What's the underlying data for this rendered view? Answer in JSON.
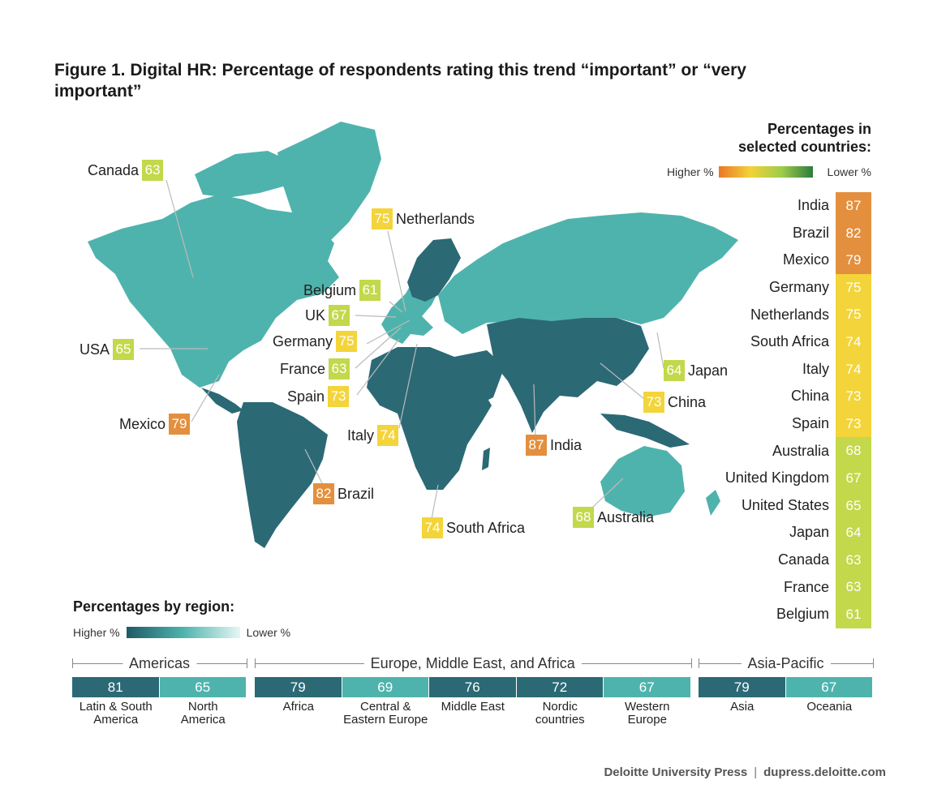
{
  "title": "Figure 1. Digital HR: Percentage of respondents rating this trend “important” or “very important”",
  "legend": {
    "heading_line1": "Percentages in",
    "heading_line2": "selected countries:",
    "higher": "Higher %",
    "lower": "Lower %",
    "region_heading": "Percentages by region:"
  },
  "colors": {
    "orange": "#e38f3e",
    "yellow": "#f3d43a",
    "lime": "#c3d84a",
    "region_dark": "#2b6975",
    "region_light": "#4fb3ad",
    "land_light": "#4fb3ad",
    "land_dark": "#2b6975"
  },
  "chart_data": [
    {
      "type": "table",
      "title": "Percentages in selected countries",
      "rows": [
        {
          "country": "India",
          "value": 87,
          "tier": "orange"
        },
        {
          "country": "Brazil",
          "value": 82,
          "tier": "orange"
        },
        {
          "country": "Mexico",
          "value": 79,
          "tier": "orange"
        },
        {
          "country": "Germany",
          "value": 75,
          "tier": "yellow"
        },
        {
          "country": "Netherlands",
          "value": 75,
          "tier": "yellow"
        },
        {
          "country": "South Africa",
          "value": 74,
          "tier": "yellow"
        },
        {
          "country": "Italy",
          "value": 74,
          "tier": "yellow"
        },
        {
          "country": "China",
          "value": 73,
          "tier": "yellow"
        },
        {
          "country": "Spain",
          "value": 73,
          "tier": "yellow"
        },
        {
          "country": "Australia",
          "value": 68,
          "tier": "lime"
        },
        {
          "country": "United Kingdom",
          "value": 67,
          "tier": "lime"
        },
        {
          "country": "United States",
          "value": 65,
          "tier": "lime"
        },
        {
          "country": "Japan",
          "value": 64,
          "tier": "lime"
        },
        {
          "country": "Canada",
          "value": 63,
          "tier": "lime"
        },
        {
          "country": "France",
          "value": 63,
          "tier": "lime"
        },
        {
          "country": "Belgium",
          "value": 61,
          "tier": "lime"
        }
      ]
    },
    {
      "type": "table",
      "title": "Percentages by region",
      "groups": [
        {
          "name": "Americas",
          "regions": [
            {
              "label_lines": [
                "Latin & South",
                "America"
              ],
              "value": 81,
              "shade": "dark"
            },
            {
              "label_lines": [
                "North",
                "America"
              ],
              "value": 65,
              "shade": "light"
            }
          ]
        },
        {
          "name": "Europe, Middle East, and Africa",
          "regions": [
            {
              "label_lines": [
                "Africa"
              ],
              "value": 79,
              "shade": "dark"
            },
            {
              "label_lines": [
                "Central &",
                "Eastern Europe"
              ],
              "value": 69,
              "shade": "light"
            },
            {
              "label_lines": [
                "Middle East"
              ],
              "value": 76,
              "shade": "dark"
            },
            {
              "label_lines": [
                "Nordic",
                "countries"
              ],
              "value": 72,
              "shade": "dark"
            },
            {
              "label_lines": [
                "Western",
                "Europe"
              ],
              "value": 67,
              "shade": "light"
            }
          ]
        },
        {
          "name": "Asia-Pacific",
          "regions": [
            {
              "label_lines": [
                "Asia"
              ],
              "value": 79,
              "shade": "dark"
            },
            {
              "label_lines": [
                "Oceania"
              ],
              "value": 67,
              "shade": "light"
            }
          ]
        }
      ]
    }
  ],
  "map_labels": [
    {
      "name": "Canada",
      "value": 63,
      "tier": "lime",
      "side": "text-left"
    },
    {
      "name": "Netherlands",
      "value": 75,
      "tier": "yellow",
      "side": "text-right"
    },
    {
      "name": "Belgium",
      "value": 61,
      "tier": "lime",
      "side": "text-left"
    },
    {
      "name": "UK",
      "value": 67,
      "tier": "lime",
      "side": "text-left"
    },
    {
      "name": "Germany",
      "value": 75,
      "tier": "yellow",
      "side": "text-left"
    },
    {
      "name": "France",
      "value": 63,
      "tier": "lime",
      "side": "text-left"
    },
    {
      "name": "Spain",
      "value": 73,
      "tier": "yellow",
      "side": "text-left"
    },
    {
      "name": "USA",
      "value": 65,
      "tier": "lime",
      "side": "text-left"
    },
    {
      "name": "Mexico",
      "value": 79,
      "tier": "orange",
      "side": "text-left"
    },
    {
      "name": "Italy",
      "value": 74,
      "tier": "yellow",
      "side": "text-left"
    },
    {
      "name": "Brazil",
      "value": 82,
      "tier": "orange",
      "side": "text-right"
    },
    {
      "name": "South Africa",
      "value": 74,
      "tier": "yellow",
      "side": "text-right"
    },
    {
      "name": "India",
      "value": 87,
      "tier": "orange",
      "side": "text-right"
    },
    {
      "name": "Japan",
      "value": 64,
      "tier": "lime",
      "side": "text-right"
    },
    {
      "name": "China",
      "value": 73,
      "tier": "yellow",
      "side": "text-right"
    },
    {
      "name": "Australia",
      "value": 68,
      "tier": "lime",
      "side": "text-right"
    }
  ],
  "footer": {
    "publisher": "Deloitte University Press",
    "separator": "|",
    "site": "dupress.deloitte.com"
  }
}
